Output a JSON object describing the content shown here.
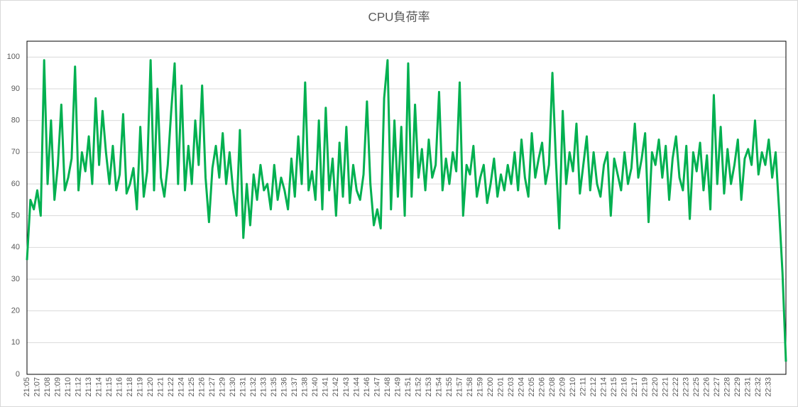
{
  "chart_data": {
    "type": "line",
    "title": "CPU負荷率",
    "categories": [
      "21:05",
      null,
      null,
      "21:07",
      null,
      null,
      "21:08",
      null,
      null,
      "21:09",
      null,
      null,
      "21:10",
      null,
      null,
      "21:12",
      null,
      null,
      "21:13",
      null,
      null,
      "21:14",
      null,
      null,
      "21:15",
      null,
      null,
      "21:16",
      null,
      null,
      "21:18",
      null,
      null,
      "21:19",
      null,
      null,
      "21:20",
      null,
      null,
      "21:21",
      null,
      null,
      "21:22",
      null,
      null,
      "21:24",
      null,
      null,
      "21:25",
      null,
      null,
      "21:26",
      null,
      null,
      "21:27",
      null,
      null,
      "21:29",
      null,
      null,
      "21:30",
      null,
      null,
      "21:31",
      null,
      null,
      "21:32",
      null,
      null,
      "21:33",
      null,
      null,
      "21:35",
      null,
      null,
      "21:36",
      null,
      null,
      "21:37",
      null,
      null,
      "21:38",
      null,
      null,
      "21:40",
      null,
      null,
      "21:41",
      null,
      null,
      "21:42",
      null,
      null,
      "21:43",
      null,
      null,
      "21:44",
      null,
      null,
      "21:46",
      null,
      null,
      "21:47",
      null,
      null,
      "21:48",
      null,
      null,
      "21:49",
      null,
      null,
      "21:51",
      null,
      null,
      "21:52",
      null,
      null,
      "21:53",
      null,
      null,
      "21:54",
      null,
      null,
      "21:55",
      null,
      null,
      "21:57",
      null,
      null,
      "21:58",
      null,
      null,
      "21:59",
      null,
      null,
      "22:00",
      null,
      null,
      "22:01",
      null,
      null,
      "22:03",
      null,
      null,
      "22:04",
      null,
      null,
      "22:05",
      null,
      null,
      "22:06",
      null,
      null,
      "22:08",
      null,
      null,
      "22:09",
      null,
      null,
      "22:10",
      null,
      null,
      "22:11",
      null,
      null,
      "22:12",
      null,
      null,
      "22:14",
      null,
      null,
      "22:15",
      null,
      null,
      "22:16",
      null,
      null,
      "22:17",
      null,
      null,
      "22:19",
      null,
      null,
      "22:20",
      null,
      null,
      "22:21",
      null,
      null,
      "22:22",
      null,
      null,
      "22:23",
      null,
      null,
      "22:25",
      null,
      null,
      "22:26",
      null,
      null,
      "22:27",
      null,
      null,
      "22:28",
      null,
      null,
      "22:29",
      null,
      null,
      "22:31",
      null,
      null,
      "22:32",
      null,
      null,
      "22:33",
      null,
      null,
      null,
      null,
      null
    ],
    "values": [
      36,
      55,
      52,
      58,
      50,
      99,
      60,
      80,
      55,
      66,
      85,
      58,
      62,
      68,
      97,
      58,
      70,
      64,
      75,
      60,
      87,
      66,
      83,
      70,
      60,
      72,
      58,
      63,
      82,
      57,
      60,
      65,
      52,
      78,
      56,
      64,
      99,
      58,
      90,
      62,
      56,
      66,
      83,
      98,
      60,
      91,
      58,
      72,
      60,
      80,
      66,
      91,
      62,
      48,
      65,
      72,
      62,
      76,
      60,
      70,
      58,
      50,
      77,
      43,
      60,
      47,
      63,
      55,
      66,
      58,
      60,
      52,
      66,
      55,
      62,
      58,
      52,
      68,
      56,
      75,
      60,
      92,
      58,
      64,
      55,
      80,
      52,
      84,
      58,
      68,
      50,
      73,
      56,
      78,
      54,
      66,
      58,
      55,
      63,
      86,
      60,
      47,
      52,
      46,
      87,
      99,
      52,
      80,
      56,
      78,
      50,
      98,
      56,
      85,
      62,
      71,
      58,
      74,
      62,
      66,
      89,
      58,
      68,
      60,
      70,
      64,
      92,
      50,
      66,
      63,
      72,
      56,
      62,
      66,
      54,
      60,
      68,
      56,
      63,
      58,
      66,
      60,
      70,
      58,
      74,
      62,
      56,
      76,
      62,
      68,
      73,
      60,
      66,
      95,
      68,
      46,
      83,
      60,
      70,
      64,
      79,
      57,
      66,
      75,
      58,
      70,
      60,
      56,
      66,
      70,
      50,
      68,
      63,
      58,
      70,
      60,
      65,
      79,
      62,
      68,
      76,
      48,
      70,
      66,
      74,
      62,
      72,
      55,
      68,
      75,
      62,
      58,
      72,
      49,
      70,
      64,
      73,
      58,
      69,
      52,
      88,
      60,
      78,
      57,
      71,
      60,
      66,
      74,
      55,
      68,
      71,
      66,
      80,
      63,
      70,
      66,
      74,
      62,
      70,
      52,
      32,
      4
    ],
    "color": "#00b050",
    "ylim": [
      0,
      105
    ],
    "yticks": [
      0,
      10,
      20,
      30,
      40,
      50,
      60,
      70,
      80,
      90,
      100
    ],
    "grid": true
  }
}
